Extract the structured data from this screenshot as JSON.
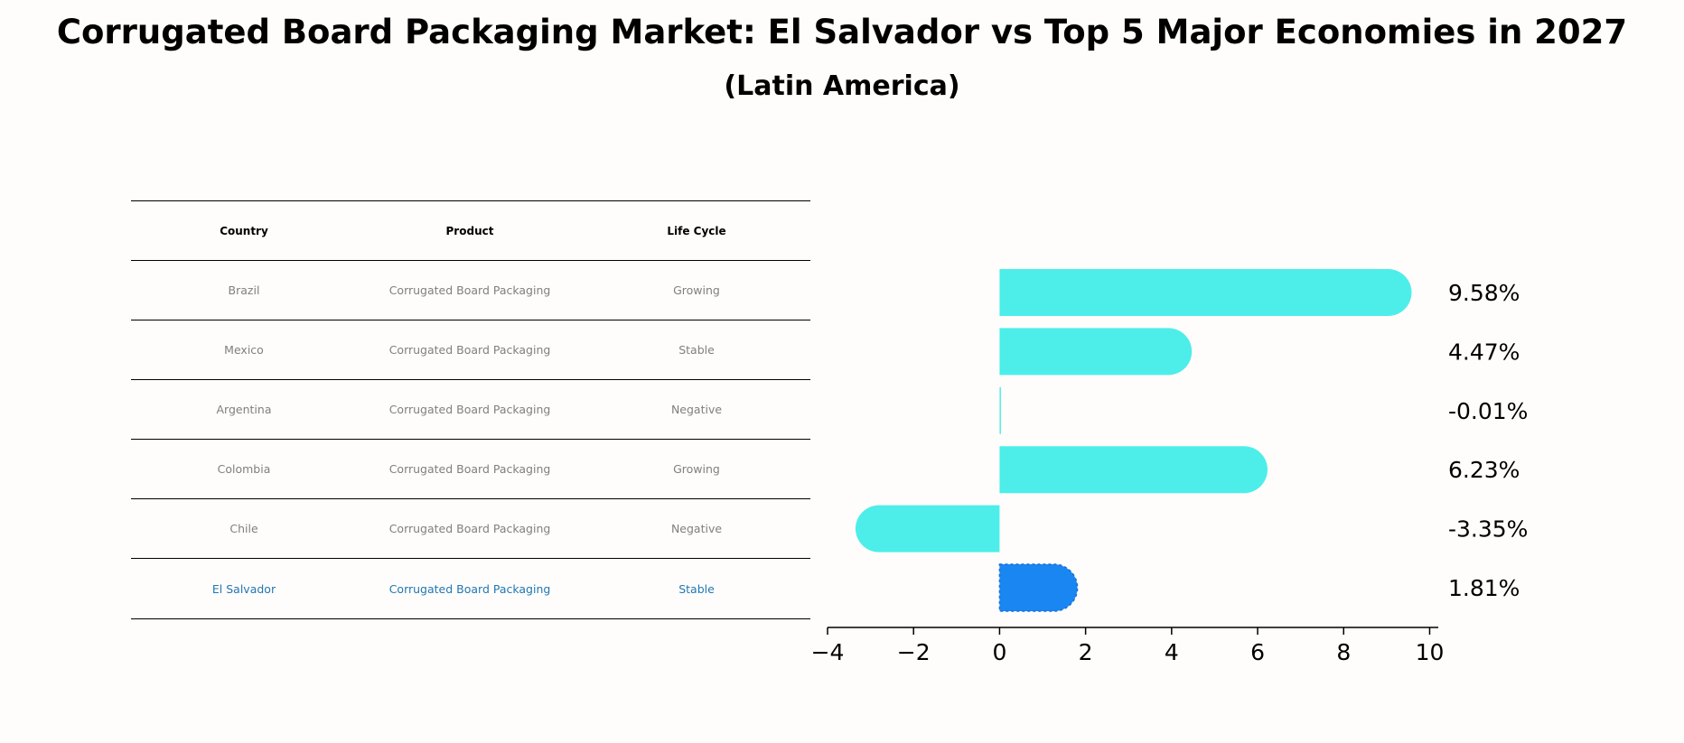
{
  "title": "Corrugated Board Packaging Market: El Salvador vs Top 5 Major Economies in 2027",
  "subtitle": "(Latin America)",
  "table": {
    "headers": [
      "Country",
      "Product",
      "Life Cycle"
    ],
    "rows": [
      [
        "Brazil",
        "Corrugated Board Packaging",
        "Growing"
      ],
      [
        "Mexico",
        "Corrugated Board Packaging",
        "Stable"
      ],
      [
        "Argentina",
        "Corrugated Board Packaging",
        "Negative"
      ],
      [
        "Colombia",
        "Corrugated Board Packaging",
        "Growing"
      ],
      [
        "Chile",
        "Corrugated Board Packaging",
        "Negative"
      ],
      [
        "El Salvador",
        "Corrugated Board Packaging",
        "Stable"
      ]
    ]
  },
  "chart_data": {
    "type": "bar",
    "orientation": "horizontal",
    "categories": [
      "Brazil",
      "Mexico",
      "Argentina",
      "Colombia",
      "Chile",
      "El Salvador"
    ],
    "values": [
      9.58,
      4.47,
      -0.01,
      6.23,
      -3.35,
      1.81
    ],
    "data_labels": [
      "9.58%",
      "4.47%",
      "-0.01%",
      "6.23%",
      "-3.35%",
      "1.81%"
    ],
    "highlight": "El Salvador",
    "colors": {
      "default": "#4deee9",
      "highlight": "#1a86f2"
    },
    "xlim": [
      -4,
      10.2
    ],
    "xticks": [
      -4,
      -2,
      0,
      2,
      4,
      6,
      8,
      10
    ],
    "xtick_labels": [
      "−4",
      "−2",
      "0",
      "2",
      "4",
      "6",
      "8",
      "10"
    ],
    "grid": false
  }
}
